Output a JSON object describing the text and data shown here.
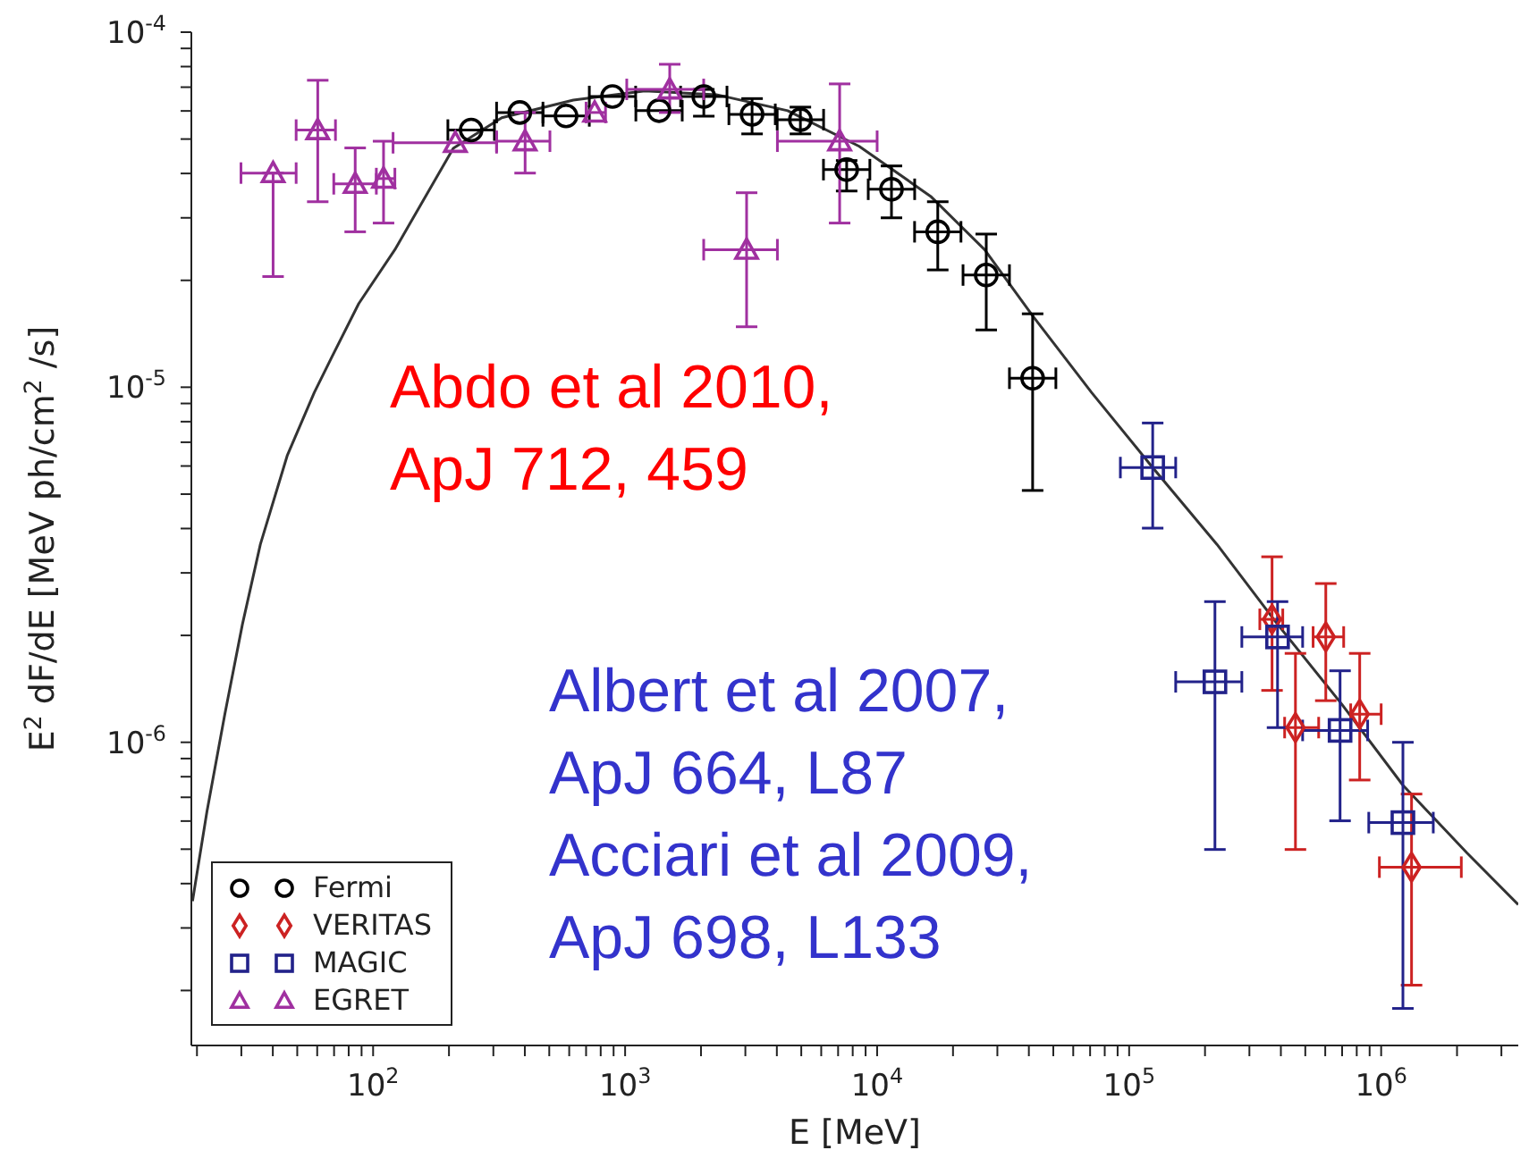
{
  "chart_data": {
    "type": "scatter",
    "xlabel": "E [MeV]",
    "ylabel": "E$^{2}$ dF/dE   [MeV ph/cm$^{2}$ /s]",
    "log": "xy",
    "grid": false,
    "legend": "bottom left",
    "xlim": [
      19,
      3500000
    ],
    "ylim": [
      1.4e-07,
      0.0001
    ],
    "xticks": [
      {
        "value": 20,
        "label": null
      },
      {
        "value": 30,
        "label": null
      },
      {
        "value": 40,
        "label": null
      },
      {
        "value": 50,
        "label": null
      },
      {
        "value": 60,
        "label": null
      },
      {
        "value": 70,
        "label": null
      },
      {
        "value": 80,
        "label": null
      },
      {
        "value": 90,
        "label": null
      },
      {
        "value": 100,
        "label": "10$^{2}$"
      },
      {
        "value": 200,
        "label": null
      },
      {
        "value": 300,
        "label": null
      },
      {
        "value": 400,
        "label": null
      },
      {
        "value": 500,
        "label": null
      },
      {
        "value": 600,
        "label": null
      },
      {
        "value": 700,
        "label": null
      },
      {
        "value": 800,
        "label": null
      },
      {
        "value": 900,
        "label": null
      },
      {
        "value": 1000,
        "label": "10$^{3}$"
      },
      {
        "value": 2000,
        "label": null
      },
      {
        "value": 3000,
        "label": null
      },
      {
        "value": 4000,
        "label": null
      },
      {
        "value": 5000,
        "label": null
      },
      {
        "value": 6000,
        "label": null
      },
      {
        "value": 7000,
        "label": null
      },
      {
        "value": 8000,
        "label": null
      },
      {
        "value": 9000,
        "label": null
      },
      {
        "value": 10000,
        "label": "10$^{4}$"
      },
      {
        "value": 20000,
        "label": null
      },
      {
        "value": 30000,
        "label": null
      },
      {
        "value": 40000,
        "label": null
      },
      {
        "value": 50000,
        "label": null
      },
      {
        "value": 60000,
        "label": null
      },
      {
        "value": 70000,
        "label": null
      },
      {
        "value": 80000,
        "label": null
      },
      {
        "value": 90000,
        "label": null
      },
      {
        "value": 100000,
        "label": "10$^{5}$"
      },
      {
        "value": 200000,
        "label": null
      },
      {
        "value": 300000,
        "label": null
      },
      {
        "value": 400000,
        "label": null
      },
      {
        "value": 500000,
        "label": null
      },
      {
        "value": 600000,
        "label": null
      },
      {
        "value": 700000,
        "label": null
      },
      {
        "value": 800000,
        "label": null
      },
      {
        "value": 900000,
        "label": null
      },
      {
        "value": 1000000,
        "label": "10$^{6}$"
      },
      {
        "value": 2000000,
        "label": null
      },
      {
        "value": 3000000,
        "label": null
      }
    ],
    "yticks": [
      {
        "value": 2e-07,
        "label": null
      },
      {
        "value": 3e-07,
        "label": null
      },
      {
        "value": 4e-07,
        "label": null
      },
      {
        "value": 5e-07,
        "label": null
      },
      {
        "value": 6e-07,
        "label": null
      },
      {
        "value": 7e-07,
        "label": null
      },
      {
        "value": 8e-07,
        "label": null
      },
      {
        "value": 9e-07,
        "label": null
      },
      {
        "value": 1e-06,
        "label": "10$^{-6}$"
      },
      {
        "value": 2e-06,
        "label": null
      },
      {
        "value": 3e-06,
        "label": null
      },
      {
        "value": 4e-06,
        "label": null
      },
      {
        "value": 5e-06,
        "label": null
      },
      {
        "value": 6e-06,
        "label": null
      },
      {
        "value": 7e-06,
        "label": null
      },
      {
        "value": 8e-06,
        "label": null
      },
      {
        "value": 9e-06,
        "label": null
      },
      {
        "value": 1e-05,
        "label": "10$^{-5}$"
      },
      {
        "value": 2e-05,
        "label": null
      },
      {
        "value": 3e-05,
        "label": null
      },
      {
        "value": 4e-05,
        "label": null
      },
      {
        "value": 5e-05,
        "label": null
      },
      {
        "value": 6e-05,
        "label": null
      },
      {
        "value": 7e-05,
        "label": null
      },
      {
        "value": 8e-05,
        "label": null
      },
      {
        "value": 9e-05,
        "label": null
      },
      {
        "value": 0.0001,
        "label": "10$^{-4}$"
      }
    ],
    "series": [
      {
        "type": "line",
        "color": "#333333",
        "marker": "none",
        "x": [
          19.2,
          21.9,
          25.8,
          30.3,
          35.7,
          45.7,
          58.4,
          68.7,
          87.7,
          122,
          208,
          324,
          623,
          1197,
          2301,
          4416,
          8490,
          16300,
          26700,
          41400,
          71000,
          124000,
          223000,
          388000,
          698000,
          1220000,
          2190000,
          3500000
        ],
        "values": [
          3.57e-07,
          6.37e-07,
          1.2e-06,
          2.15e-06,
          3.61e-06,
          6.44e-06,
          9.66e-06,
          1.22e-05,
          1.72e-05,
          2.44e-05,
          4.71e-05,
          5.74e-05,
          6.44e-05,
          6.83e-05,
          6.67e-05,
          6.01e-05,
          4.77e-05,
          3.45e-05,
          2.44e-05,
          1.59e-05,
          9.66e-06,
          5.94e-06,
          3.61e-06,
          2.15e-06,
          1.28e-06,
          7.57e-07,
          4.88e-07,
          3.49e-07
        ]
      },
      {
        "name": "Fermi",
        "color": "#000000",
        "marker": "circle",
        "x": [
          245,
          382,
          583,
          891,
          1363,
          2052,
          3190,
          4960,
          7570,
          11400,
          17400,
          27100,
          41400
        ],
        "values": [
          5.3e-05,
          5.94e-05,
          5.81e-05,
          6.59e-05,
          6.01e-05,
          6.59e-05,
          5.87e-05,
          5.67e-05,
          4.1e-05,
          3.61e-05,
          2.74e-05,
          2.07e-05,
          1.06e-05
        ],
        "errors": [
          null,
          null,
          null,
          null,
          null,
          [
            5.8e-05,
            6.9e-05
          ],
          [
            5.17e-05,
            6.5e-05
          ],
          [
            5.17e-05,
            6.15e-05
          ],
          [
            3.57e-05,
            4.35e-05
          ],
          [
            3e-05,
            4.2e-05
          ],
          [
            2.14e-05,
            3.33e-05
          ],
          [
            1.45e-05,
            2.7e-05
          ],
          [
            5.12e-06,
            1.61e-05
          ]
        ],
        "xerrors": [
          [
            198,
            303
          ],
          [
            309,
            472
          ],
          [
            472,
            721
          ],
          [
            721,
            1101
          ],
          [
            1103,
            1685
          ],
          [
            1660,
            2536
          ],
          [
            2581,
            3943
          ],
          [
            4013,
            6131
          ],
          [
            6124,
            9357
          ],
          [
            9220,
            14090
          ],
          [
            14080,
            21510
          ],
          [
            21920,
            33500
          ],
          [
            33500,
            51200
          ]
        ]
      },
      {
        "name": "VERITAS",
        "color": "#cc2222",
        "marker": "diamond",
        "x": [
          369000,
          457000,
          603000,
          822000,
          1320000
        ],
        "values": [
          2.22e-06,
          1.1e-06,
          1.98e-06,
          1.2e-06,
          4.45e-07
        ],
        "errors": [
          [
            1.4e-06,
            3.33e-06
          ],
          [
            4.99e-07,
            1.78e-06
          ],
          [
            1.31e-06,
            2.8e-06
          ],
          [
            7.83e-07,
            1.78e-06
          ],
          [
            2.07e-07,
            7.15e-07
          ]
        ],
        "xerrors": [
          [
            330000,
            407000
          ],
          [
            414000,
            565000
          ],
          [
            537000,
            710000
          ],
          [
            757000,
            1000000
          ],
          [
            984000,
            2080000
          ]
        ]
      },
      {
        "name": "MAGIC",
        "color": "#22228a",
        "marker": "square",
        "x": [
          124000,
          219000,
          388000,
          687000,
          1220000
        ],
        "values": [
          5.94e-06,
          1.48e-06,
          1.98e-06,
          1.08e-06,
          5.94e-07
        ],
        "errors": [
          [
            4.01e-06,
            7.93e-06
          ],
          [
            4.99e-07,
            2.49e-06
          ],
          [
            1.1e-06,
            2.49e-06
          ],
          [
            6.01e-07,
            1.59e-06
          ],
          [
            1.78e-07,
            1e-06
          ]
        ],
        "xerrors": [
          [
            92300,
            153000
          ],
          [
            153000,
            280000
          ],
          [
            280000,
            488000
          ],
          [
            488000,
            884000
          ],
          [
            893000,
            1610000
          ]
        ]
      },
      {
        "name": "EGRET",
        "color": "#a030a0",
        "marker": "triangle",
        "x": [
          40.1,
          60.3,
          84.9,
          110,
          212,
          401,
          757,
          1503,
          3034,
          7100
        ],
        "values": [
          4.01e-05,
          5.3e-05,
          3.74e-05,
          3.87e-05,
          4.88e-05,
          4.93e-05,
          5.94e-05,
          6.9e-05,
          2.44e-05,
          4.93e-05
        ],
        "errors": [
          [
            2.05e-05,
            4.01e-05
          ],
          [
            3.33e-05,
            7.32e-05
          ],
          [
            2.74e-05,
            4.72e-05
          ],
          [
            2.9e-05,
            4.93e-05
          ],
          null,
          [
            4.01e-05,
            5.94e-05
          ],
          null,
          [
            5.94e-05,
            8.12e-05
          ],
          [
            1.48e-05,
            3.53e-05
          ],
          [
            2.9e-05,
            7.15e-05
          ]
        ],
        "xerrors": [
          [
            29.9,
            49.5
          ],
          [
            49.5,
            70.9
          ],
          [
            69.8,
            103
          ],
          [
            103,
            122
          ],
          [
            120,
            309
          ],
          [
            309,
            503
          ],
          [
            700,
            836
          ],
          [
            1015,
            2050
          ],
          [
            2050,
            4020
          ],
          [
            4020,
            10000
          ]
        ]
      }
    ],
    "annotations": [
      "Abdo et al 2010,\nApJ 712, 459",
      "Albert et al 2007,\nApJ 664, L87",
      "Acciari et al 2009,\nApJ 698, L133"
    ]
  }
}
